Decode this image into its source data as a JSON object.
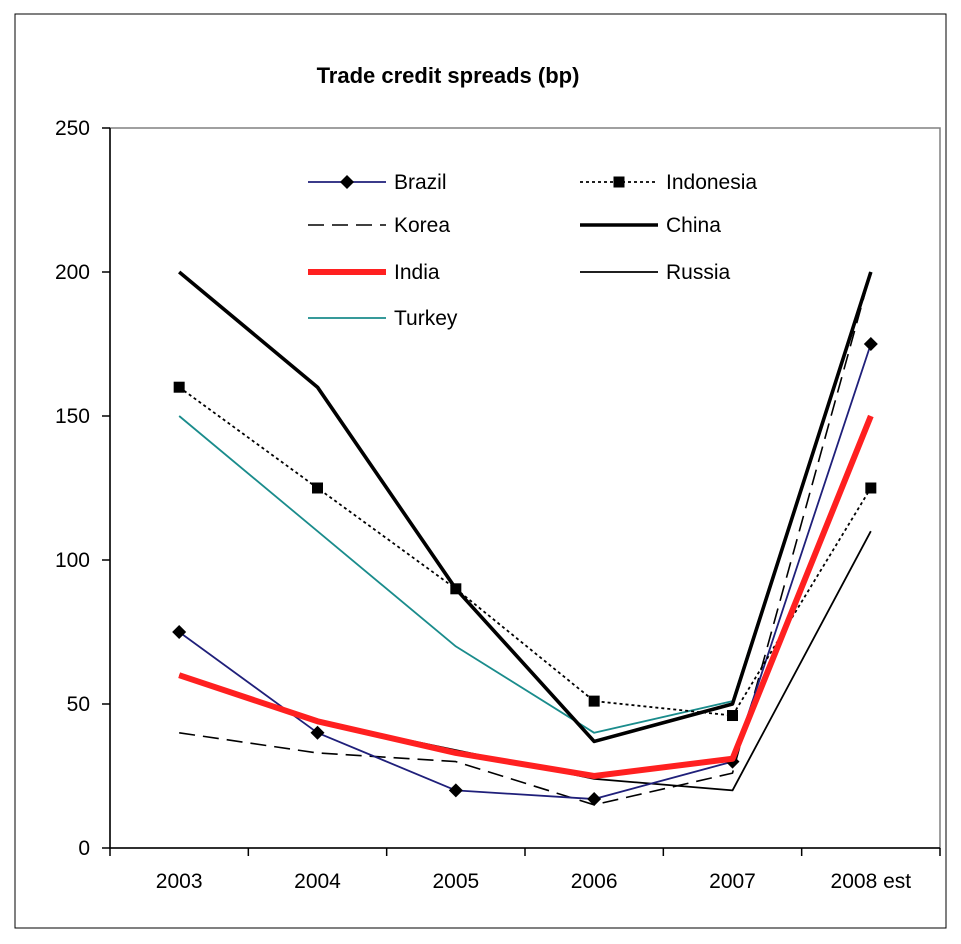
{
  "chart_data": {
    "type": "line",
    "title": "Trade credit spreads (bp)",
    "xlabel": "",
    "ylabel": "",
    "categories": [
      "2003",
      "2004",
      "2005",
      "2006",
      "2007",
      "2008 est"
    ],
    "ylim": [
      0,
      250
    ],
    "yticks": [
      0,
      50,
      100,
      150,
      200,
      250
    ],
    "grid": false,
    "legend_position": "top-inside",
    "series": [
      {
        "name": "Brazil",
        "values": [
          75,
          40,
          20,
          17,
          30,
          175
        ],
        "color": "#1f1f7a",
        "style": "solid",
        "marker": "diamond"
      },
      {
        "name": "Indonesia",
        "values": [
          160,
          125,
          90,
          51,
          46,
          125
        ],
        "color": "#000000",
        "style": "dotted",
        "marker": "square"
      },
      {
        "name": "Korea",
        "values": [
          40,
          33,
          30,
          15,
          26,
          200
        ],
        "color": "#000000",
        "style": "dashed",
        "marker": "none"
      },
      {
        "name": "China",
        "values": [
          200,
          160,
          90,
          37,
          50,
          200
        ],
        "color": "#000000",
        "style": "thick",
        "marker": "none"
      },
      {
        "name": "India",
        "values": [
          60,
          44,
          33,
          25,
          31,
          150
        ],
        "color": "#ff2020",
        "style": "thick-red",
        "marker": "none"
      },
      {
        "name": "Russia",
        "values": [
          60,
          44,
          34,
          24,
          20,
          110
        ],
        "color": "#000000",
        "style": "solid",
        "marker": "none"
      },
      {
        "name": "Turkey",
        "values": [
          150,
          110,
          70,
          40,
          51,
          200
        ],
        "color": "#1a8c8c",
        "style": "solid",
        "marker": "none"
      }
    ]
  }
}
